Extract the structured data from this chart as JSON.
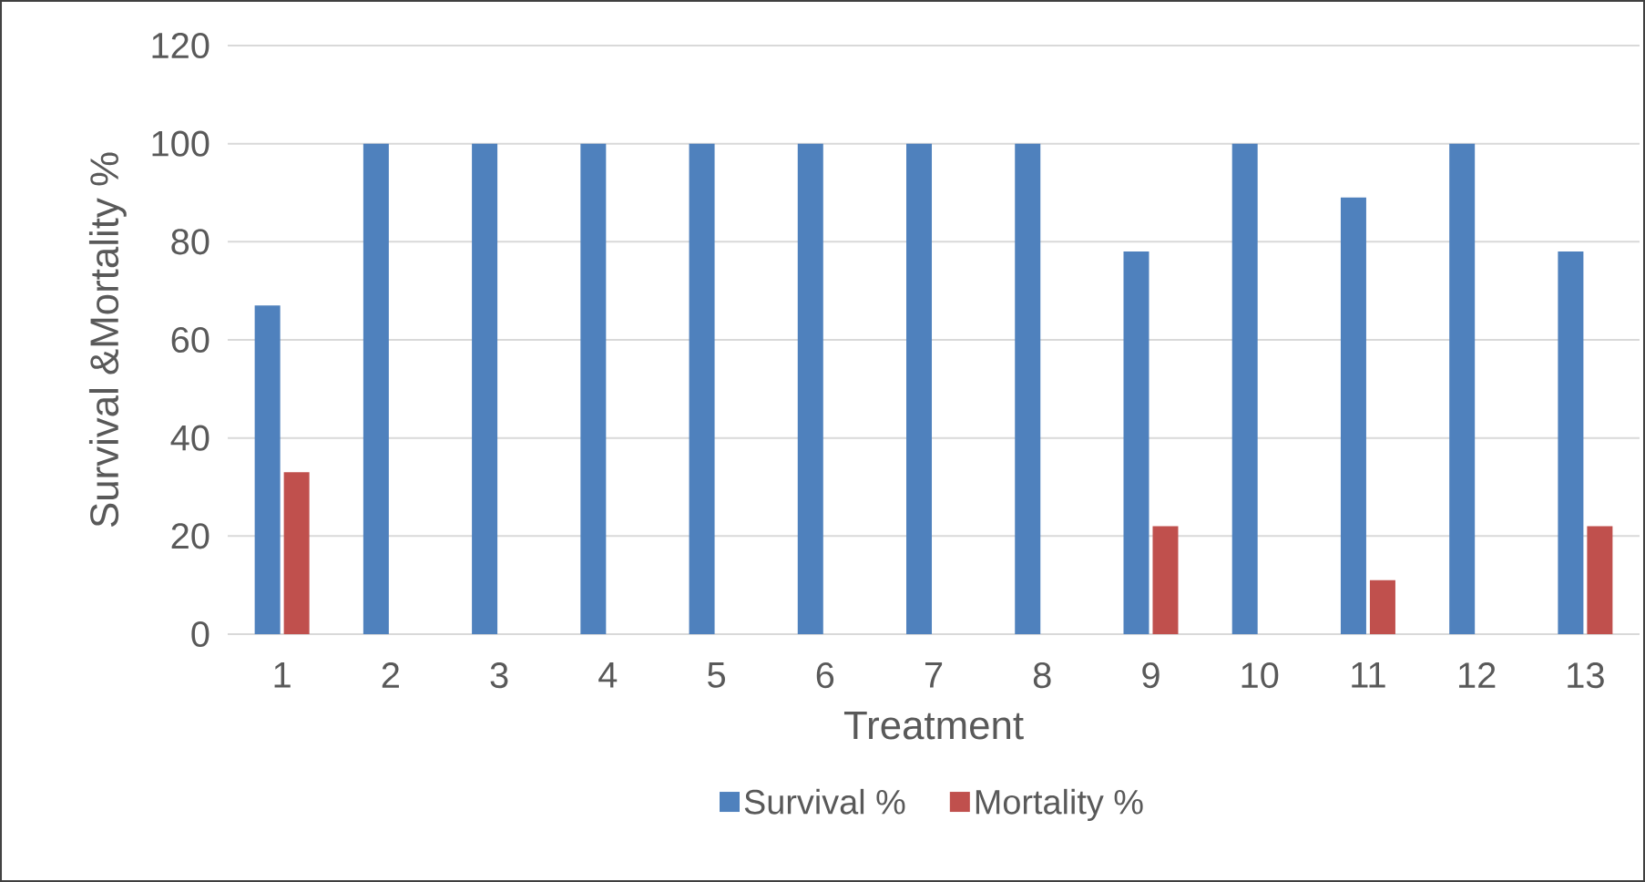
{
  "chart_data": {
    "type": "bar",
    "xlabel": "Treatment",
    "ylabel": "Survival &Mortality %",
    "categories": [
      "1",
      "2",
      "3",
      "4",
      "5",
      "6",
      "7",
      "8",
      "9",
      "10",
      "11",
      "12",
      "13"
    ],
    "series": [
      {
        "name": "Survival %",
        "color": "#4f81bd",
        "values": [
          67,
          100,
          100,
          100,
          100,
          100,
          100,
          100,
          78,
          100,
          89,
          100,
          78
        ]
      },
      {
        "name": "Mortality %",
        "color": "#c0504d",
        "values": [
          33,
          0,
          0,
          0,
          0,
          0,
          0,
          0,
          22,
          0,
          11,
          0,
          22
        ]
      }
    ],
    "ylim": [
      0,
      120
    ],
    "yticks": [
      0,
      20,
      40,
      60,
      80,
      100,
      120
    ],
    "grid": "y",
    "legend": "bottom"
  }
}
